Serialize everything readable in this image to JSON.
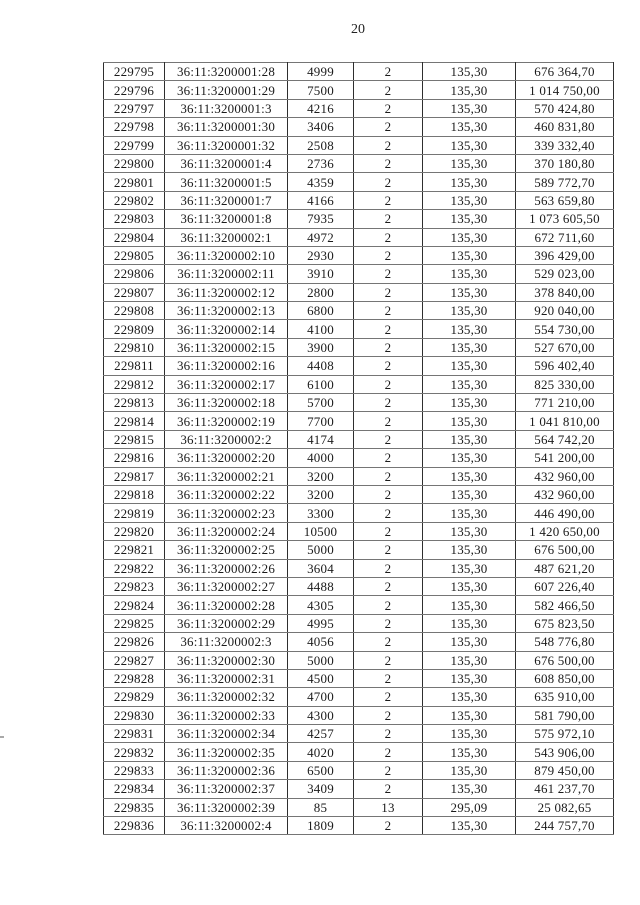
{
  "page": {
    "number": "20"
  },
  "table": {
    "rows": [
      [
        "229795",
        "36:11:3200001:28",
        "4999",
        "2",
        "135,30",
        "676 364,70"
      ],
      [
        "229796",
        "36:11:3200001:29",
        "7500",
        "2",
        "135,30",
        "1 014 750,00"
      ],
      [
        "229797",
        "36:11:3200001:3",
        "4216",
        "2",
        "135,30",
        "570 424,80"
      ],
      [
        "229798",
        "36:11:3200001:30",
        "3406",
        "2",
        "135,30",
        "460 831,80"
      ],
      [
        "229799",
        "36:11:3200001:32",
        "2508",
        "2",
        "135,30",
        "339 332,40"
      ],
      [
        "229800",
        "36:11:3200001:4",
        "2736",
        "2",
        "135,30",
        "370 180,80"
      ],
      [
        "229801",
        "36:11:3200001:5",
        "4359",
        "2",
        "135,30",
        "589 772,70"
      ],
      [
        "229802",
        "36:11:3200001:7",
        "4166",
        "2",
        "135,30",
        "563 659,80"
      ],
      [
        "229803",
        "36:11:3200001:8",
        "7935",
        "2",
        "135,30",
        "1 073 605,50"
      ],
      [
        "229804",
        "36:11:3200002:1",
        "4972",
        "2",
        "135,30",
        "672 711,60"
      ],
      [
        "229805",
        "36:11:3200002:10",
        "2930",
        "2",
        "135,30",
        "396 429,00"
      ],
      [
        "229806",
        "36:11:3200002:11",
        "3910",
        "2",
        "135,30",
        "529 023,00"
      ],
      [
        "229807",
        "36:11:3200002:12",
        "2800",
        "2",
        "135,30",
        "378 840,00"
      ],
      [
        "229808",
        "36:11:3200002:13",
        "6800",
        "2",
        "135,30",
        "920 040,00"
      ],
      [
        "229809",
        "36:11:3200002:14",
        "4100",
        "2",
        "135,30",
        "554 730,00"
      ],
      [
        "229810",
        "36:11:3200002:15",
        "3900",
        "2",
        "135,30",
        "527 670,00"
      ],
      [
        "229811",
        "36:11:3200002:16",
        "4408",
        "2",
        "135,30",
        "596 402,40"
      ],
      [
        "229812",
        "36:11:3200002:17",
        "6100",
        "2",
        "135,30",
        "825 330,00"
      ],
      [
        "229813",
        "36:11:3200002:18",
        "5700",
        "2",
        "135,30",
        "771 210,00"
      ],
      [
        "229814",
        "36:11:3200002:19",
        "7700",
        "2",
        "135,30",
        "1 041 810,00"
      ],
      [
        "229815",
        "36:11:3200002:2",
        "4174",
        "2",
        "135,30",
        "564 742,20"
      ],
      [
        "229816",
        "36:11:3200002:20",
        "4000",
        "2",
        "135,30",
        "541 200,00"
      ],
      [
        "229817",
        "36:11:3200002:21",
        "3200",
        "2",
        "135,30",
        "432 960,00"
      ],
      [
        "229818",
        "36:11:3200002:22",
        "3200",
        "2",
        "135,30",
        "432 960,00"
      ],
      [
        "229819",
        "36:11:3200002:23",
        "3300",
        "2",
        "135,30",
        "446 490,00"
      ],
      [
        "229820",
        "36:11:3200002:24",
        "10500",
        "2",
        "135,30",
        "1 420 650,00"
      ],
      [
        "229821",
        "36:11:3200002:25",
        "5000",
        "2",
        "135,30",
        "676 500,00"
      ],
      [
        "229822",
        "36:11:3200002:26",
        "3604",
        "2",
        "135,30",
        "487 621,20"
      ],
      [
        "229823",
        "36:11:3200002:27",
        "4488",
        "2",
        "135,30",
        "607 226,40"
      ],
      [
        "229824",
        "36:11:3200002:28",
        "4305",
        "2",
        "135,30",
        "582 466,50"
      ],
      [
        "229825",
        "36:11:3200002:29",
        "4995",
        "2",
        "135,30",
        "675 823,50"
      ],
      [
        "229826",
        "36:11:3200002:3",
        "4056",
        "2",
        "135,30",
        "548 776,80"
      ],
      [
        "229827",
        "36:11:3200002:30",
        "5000",
        "2",
        "135,30",
        "676 500,00"
      ],
      [
        "229828",
        "36:11:3200002:31",
        "4500",
        "2",
        "135,30",
        "608 850,00"
      ],
      [
        "229829",
        "36:11:3200002:32",
        "4700",
        "2",
        "135,30",
        "635 910,00"
      ],
      [
        "229830",
        "36:11:3200002:33",
        "4300",
        "2",
        "135,30",
        "581 790,00"
      ],
      [
        "229831",
        "36:11:3200002:34",
        "4257",
        "2",
        "135,30",
        "575 972,10"
      ],
      [
        "229832",
        "36:11:3200002:35",
        "4020",
        "2",
        "135,30",
        "543 906,00"
      ],
      [
        "229833",
        "36:11:3200002:36",
        "6500",
        "2",
        "135,30",
        "879 450,00"
      ],
      [
        "229834",
        "36:11:3200002:37",
        "3409",
        "2",
        "135,30",
        "461 237,70"
      ],
      [
        "229835",
        "36:11:3200002:39",
        "85",
        "13",
        "295,09",
        "25 082,65"
      ],
      [
        "229836",
        "36:11:3200002:4",
        "1809",
        "2",
        "135,30",
        "244 757,70"
      ]
    ]
  }
}
